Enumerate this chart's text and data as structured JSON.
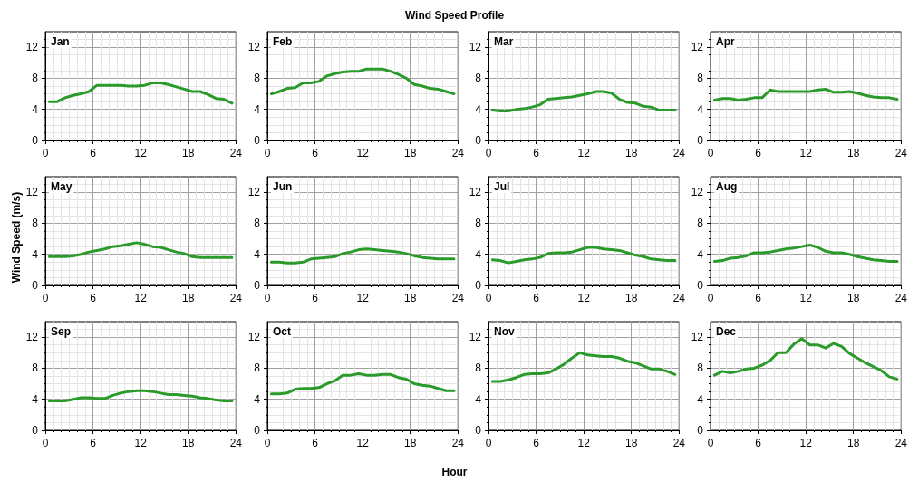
{
  "chart_data": [
    {
      "type": "line",
      "annotations": [
        "Jan"
      ],
      "x": [
        0.5,
        1.5,
        2.5,
        3.5,
        4.5,
        5.5,
        6.5,
        7.5,
        8.5,
        9.5,
        10.5,
        11.5,
        12.5,
        13.5,
        14.5,
        15.5,
        16.5,
        17.5,
        18.5,
        19.5,
        20.5,
        21.5,
        22.5,
        23.5
      ],
      "xlim": [
        0,
        24
      ],
      "xticks": [
        0,
        6,
        12,
        18,
        24
      ],
      "ylim": [
        0,
        14
      ],
      "yticks": [
        0,
        4,
        8,
        12
      ],
      "grid": true,
      "marker": "none",
      "series": [
        {
          "color": "#2a9a2a",
          "values": [
            5.0,
            5.0,
            5.5,
            5.8,
            6.0,
            6.3,
            7.1,
            7.1,
            7.1,
            7.1,
            7.0,
            7.0,
            7.1,
            7.4,
            7.4,
            7.2,
            6.9,
            6.6,
            6.3,
            6.3,
            5.9,
            5.4,
            5.3,
            4.8
          ]
        }
      ]
    },
    {
      "type": "line",
      "title": "Wind Speed Profile",
      "annotations": [
        "Feb"
      ],
      "x": [
        0.5,
        1.5,
        2.5,
        3.5,
        4.5,
        5.5,
        6.5,
        7.5,
        8.5,
        9.5,
        10.5,
        11.5,
        12.5,
        13.5,
        14.5,
        15.5,
        16.5,
        17.5,
        18.5,
        19.5,
        20.5,
        21.5,
        22.5,
        23.5
      ],
      "xlim": [
        0,
        24
      ],
      "xticks": [
        0,
        6,
        12,
        18,
        24
      ],
      "ylim": [
        0,
        14
      ],
      "yticks": [
        0,
        4,
        8,
        12
      ],
      "grid": true,
      "marker": "none",
      "series": [
        {
          "color": "#2a9a2a",
          "values": [
            6.0,
            6.3,
            6.7,
            6.8,
            7.4,
            7.4,
            7.6,
            8.3,
            8.6,
            8.8,
            8.9,
            8.9,
            9.2,
            9.2,
            9.2,
            8.9,
            8.5,
            8.0,
            7.2,
            7.0,
            6.7,
            6.6,
            6.3,
            6.0
          ]
        }
      ]
    },
    {
      "type": "line",
      "annotations": [
        "Mar"
      ],
      "x": [
        0.5,
        1.5,
        2.5,
        3.5,
        4.5,
        5.5,
        6.5,
        7.5,
        8.5,
        9.5,
        10.5,
        11.5,
        12.5,
        13.5,
        14.5,
        15.5,
        16.5,
        17.5,
        18.5,
        19.5,
        20.5,
        21.5,
        22.5,
        23.5
      ],
      "xlim": [
        0,
        24
      ],
      "xticks": [
        0,
        6,
        12,
        18,
        24
      ],
      "ylim": [
        0,
        14
      ],
      "yticks": [
        0,
        4,
        8,
        12
      ],
      "grid": true,
      "marker": "none",
      "series": [
        {
          "color": "#2a9a2a",
          "values": [
            3.9,
            3.8,
            3.8,
            4.0,
            4.1,
            4.3,
            4.6,
            5.3,
            5.4,
            5.5,
            5.6,
            5.8,
            6.0,
            6.3,
            6.3,
            6.1,
            5.3,
            4.9,
            4.8,
            4.4,
            4.3,
            3.9,
            3.9,
            3.9
          ]
        }
      ]
    },
    {
      "type": "line",
      "annotations": [
        "Apr"
      ],
      "x": [
        0.5,
        1.5,
        2.5,
        3.5,
        4.5,
        5.5,
        6.5,
        7.5,
        8.5,
        9.5,
        10.5,
        11.5,
        12.5,
        13.5,
        14.5,
        15.5,
        16.5,
        17.5,
        18.5,
        19.5,
        20.5,
        21.5,
        22.5,
        23.5
      ],
      "xlim": [
        0,
        24
      ],
      "xticks": [
        0,
        6,
        12,
        18,
        24
      ],
      "ylim": [
        0,
        14
      ],
      "yticks": [
        0,
        4,
        8,
        12
      ],
      "grid": true,
      "marker": "none",
      "series": [
        {
          "color": "#2a9a2a",
          "values": [
            5.2,
            5.4,
            5.4,
            5.2,
            5.3,
            5.5,
            5.5,
            6.5,
            6.3,
            6.3,
            6.3,
            6.3,
            6.3,
            6.5,
            6.6,
            6.2,
            6.2,
            6.3,
            6.1,
            5.8,
            5.6,
            5.5,
            5.5,
            5.3
          ]
        }
      ]
    },
    {
      "type": "line",
      "ylabel": "Wind Speed (m/s)",
      "annotations": [
        "May"
      ],
      "x": [
        0.5,
        1.5,
        2.5,
        3.5,
        4.5,
        5.5,
        6.5,
        7.5,
        8.5,
        9.5,
        10.5,
        11.5,
        12.5,
        13.5,
        14.5,
        15.5,
        16.5,
        17.5,
        18.5,
        19.5,
        20.5,
        21.5,
        22.5,
        23.5
      ],
      "xlim": [
        0,
        24
      ],
      "xticks": [
        0,
        6,
        12,
        18,
        24
      ],
      "ylim": [
        0,
        14
      ],
      "yticks": [
        0,
        4,
        8,
        12
      ],
      "grid": true,
      "marker": "none",
      "series": [
        {
          "color": "#2a9a2a",
          "values": [
            3.7,
            3.7,
            3.7,
            3.8,
            4.0,
            4.3,
            4.5,
            4.7,
            5.0,
            5.1,
            5.3,
            5.5,
            5.3,
            5.0,
            4.9,
            4.6,
            4.3,
            4.1,
            3.7,
            3.6,
            3.6,
            3.6,
            3.6,
            3.6
          ]
        }
      ]
    },
    {
      "type": "line",
      "annotations": [
        "Jun"
      ],
      "x": [
        0.5,
        1.5,
        2.5,
        3.5,
        4.5,
        5.5,
        6.5,
        7.5,
        8.5,
        9.5,
        10.5,
        11.5,
        12.5,
        13.5,
        14.5,
        15.5,
        16.5,
        17.5,
        18.5,
        19.5,
        20.5,
        21.5,
        22.5,
        23.5
      ],
      "xlim": [
        0,
        24
      ],
      "xticks": [
        0,
        6,
        12,
        18,
        24
      ],
      "ylim": [
        0,
        14
      ],
      "yticks": [
        0,
        4,
        8,
        12
      ],
      "grid": true,
      "marker": "none",
      "series": [
        {
          "color": "#2a9a2a",
          "values": [
            3.0,
            3.0,
            2.9,
            2.9,
            3.0,
            3.4,
            3.5,
            3.6,
            3.7,
            4.1,
            4.3,
            4.6,
            4.7,
            4.6,
            4.5,
            4.4,
            4.3,
            4.1,
            3.8,
            3.6,
            3.5,
            3.4,
            3.4,
            3.4
          ]
        }
      ]
    },
    {
      "type": "line",
      "annotations": [
        "Jul"
      ],
      "x": [
        0.5,
        1.5,
        2.5,
        3.5,
        4.5,
        5.5,
        6.5,
        7.5,
        8.5,
        9.5,
        10.5,
        11.5,
        12.5,
        13.5,
        14.5,
        15.5,
        16.5,
        17.5,
        18.5,
        19.5,
        20.5,
        21.5,
        22.5,
        23.5
      ],
      "xlim": [
        0,
        24
      ],
      "xticks": [
        0,
        6,
        12,
        18,
        24
      ],
      "ylim": [
        0,
        14
      ],
      "yticks": [
        0,
        4,
        8,
        12
      ],
      "grid": true,
      "marker": "none",
      "series": [
        {
          "color": "#2a9a2a",
          "values": [
            3.3,
            3.2,
            2.9,
            3.1,
            3.3,
            3.4,
            3.6,
            4.1,
            4.2,
            4.2,
            4.3,
            4.6,
            4.9,
            4.9,
            4.7,
            4.6,
            4.5,
            4.2,
            3.9,
            3.7,
            3.4,
            3.3,
            3.2,
            3.2
          ]
        }
      ]
    },
    {
      "type": "line",
      "annotations": [
        "Aug"
      ],
      "x": [
        0.5,
        1.5,
        2.5,
        3.5,
        4.5,
        5.5,
        6.5,
        7.5,
        8.5,
        9.5,
        10.5,
        11.5,
        12.5,
        13.5,
        14.5,
        15.5,
        16.5,
        17.5,
        18.5,
        19.5,
        20.5,
        21.5,
        22.5,
        23.5
      ],
      "xlim": [
        0,
        24
      ],
      "xticks": [
        0,
        6,
        12,
        18,
        24
      ],
      "ylim": [
        0,
        14
      ],
      "yticks": [
        0,
        4,
        8,
        12
      ],
      "grid": true,
      "marker": "none",
      "series": [
        {
          "color": "#2a9a2a",
          "values": [
            3.1,
            3.2,
            3.5,
            3.6,
            3.8,
            4.2,
            4.2,
            4.3,
            4.5,
            4.7,
            4.8,
            5.0,
            5.2,
            4.9,
            4.4,
            4.2,
            4.2,
            4.0,
            3.7,
            3.5,
            3.3,
            3.2,
            3.1,
            3.1
          ]
        }
      ]
    },
    {
      "type": "line",
      "annotations": [
        "Sep"
      ],
      "x": [
        0.5,
        1.5,
        2.5,
        3.5,
        4.5,
        5.5,
        6.5,
        7.5,
        8.5,
        9.5,
        10.5,
        11.5,
        12.5,
        13.5,
        14.5,
        15.5,
        16.5,
        17.5,
        18.5,
        19.5,
        20.5,
        21.5,
        22.5,
        23.5
      ],
      "xlim": [
        0,
        24
      ],
      "xticks": [
        0,
        6,
        12,
        18,
        24
      ],
      "ylim": [
        0,
        14
      ],
      "yticks": [
        0,
        4,
        8,
        12
      ],
      "grid": true,
      "marker": "none",
      "series": [
        {
          "color": "#2a9a2a",
          "values": [
            3.8,
            3.8,
            3.8,
            4.0,
            4.2,
            4.2,
            4.1,
            4.1,
            4.5,
            4.8,
            5.0,
            5.1,
            5.1,
            5.0,
            4.8,
            4.6,
            4.6,
            4.5,
            4.4,
            4.2,
            4.1,
            3.9,
            3.8,
            3.8
          ]
        }
      ]
    },
    {
      "type": "line",
      "xlabel": "Hour",
      "annotations": [
        "Oct"
      ],
      "x": [
        0.5,
        1.5,
        2.5,
        3.5,
        4.5,
        5.5,
        6.5,
        7.5,
        8.5,
        9.5,
        10.5,
        11.5,
        12.5,
        13.5,
        14.5,
        15.5,
        16.5,
        17.5,
        18.5,
        19.5,
        20.5,
        21.5,
        22.5,
        23.5
      ],
      "xlim": [
        0,
        24
      ],
      "xticks": [
        0,
        6,
        12,
        18,
        24
      ],
      "ylim": [
        0,
        14
      ],
      "yticks": [
        0,
        4,
        8,
        12
      ],
      "grid": true,
      "marker": "none",
      "series": [
        {
          "color": "#2a9a2a",
          "values": [
            4.7,
            4.7,
            4.8,
            5.3,
            5.4,
            5.4,
            5.5,
            6.0,
            6.4,
            7.1,
            7.1,
            7.3,
            7.1,
            7.1,
            7.2,
            7.2,
            6.8,
            6.6,
            6.0,
            5.8,
            5.7,
            5.4,
            5.1,
            5.1
          ]
        }
      ]
    },
    {
      "type": "line",
      "annotations": [
        "Nov"
      ],
      "x": [
        0.5,
        1.5,
        2.5,
        3.5,
        4.5,
        5.5,
        6.5,
        7.5,
        8.5,
        9.5,
        10.5,
        11.5,
        12.5,
        13.5,
        14.5,
        15.5,
        16.5,
        17.5,
        18.5,
        19.5,
        20.5,
        21.5,
        22.5,
        23.5
      ],
      "xlim": [
        0,
        24
      ],
      "xticks": [
        0,
        6,
        12,
        18,
        24
      ],
      "ylim": [
        0,
        14
      ],
      "yticks": [
        0,
        4,
        8,
        12
      ],
      "grid": true,
      "marker": "none",
      "series": [
        {
          "color": "#2a9a2a",
          "values": [
            6.3,
            6.3,
            6.5,
            6.8,
            7.2,
            7.3,
            7.3,
            7.4,
            7.9,
            8.5,
            9.3,
            10.0,
            9.7,
            9.6,
            9.5,
            9.5,
            9.3,
            8.9,
            8.7,
            8.3,
            7.9,
            7.9,
            7.6,
            7.2
          ]
        }
      ]
    },
    {
      "type": "line",
      "annotations": [
        "Dec"
      ],
      "x": [
        0.5,
        1.5,
        2.5,
        3.5,
        4.5,
        5.5,
        6.5,
        7.5,
        8.5,
        9.5,
        10.5,
        11.5,
        12.5,
        13.5,
        14.5,
        15.5,
        16.5,
        17.5,
        18.5,
        19.5,
        20.5,
        21.5,
        22.5,
        23.5
      ],
      "xlim": [
        0,
        24
      ],
      "xticks": [
        0,
        6,
        12,
        18,
        24
      ],
      "ylim": [
        0,
        14
      ],
      "yticks": [
        0,
        4,
        8,
        12
      ],
      "grid": true,
      "marker": "none",
      "series": [
        {
          "color": "#2a9a2a",
          "values": [
            7.1,
            7.6,
            7.4,
            7.6,
            7.9,
            8.0,
            8.4,
            9.0,
            10.0,
            10.0,
            11.1,
            11.8,
            11.0,
            11.0,
            10.6,
            11.2,
            10.8,
            9.9,
            9.3,
            8.7,
            8.2,
            7.7,
            6.9,
            6.6
          ]
        }
      ]
    }
  ]
}
